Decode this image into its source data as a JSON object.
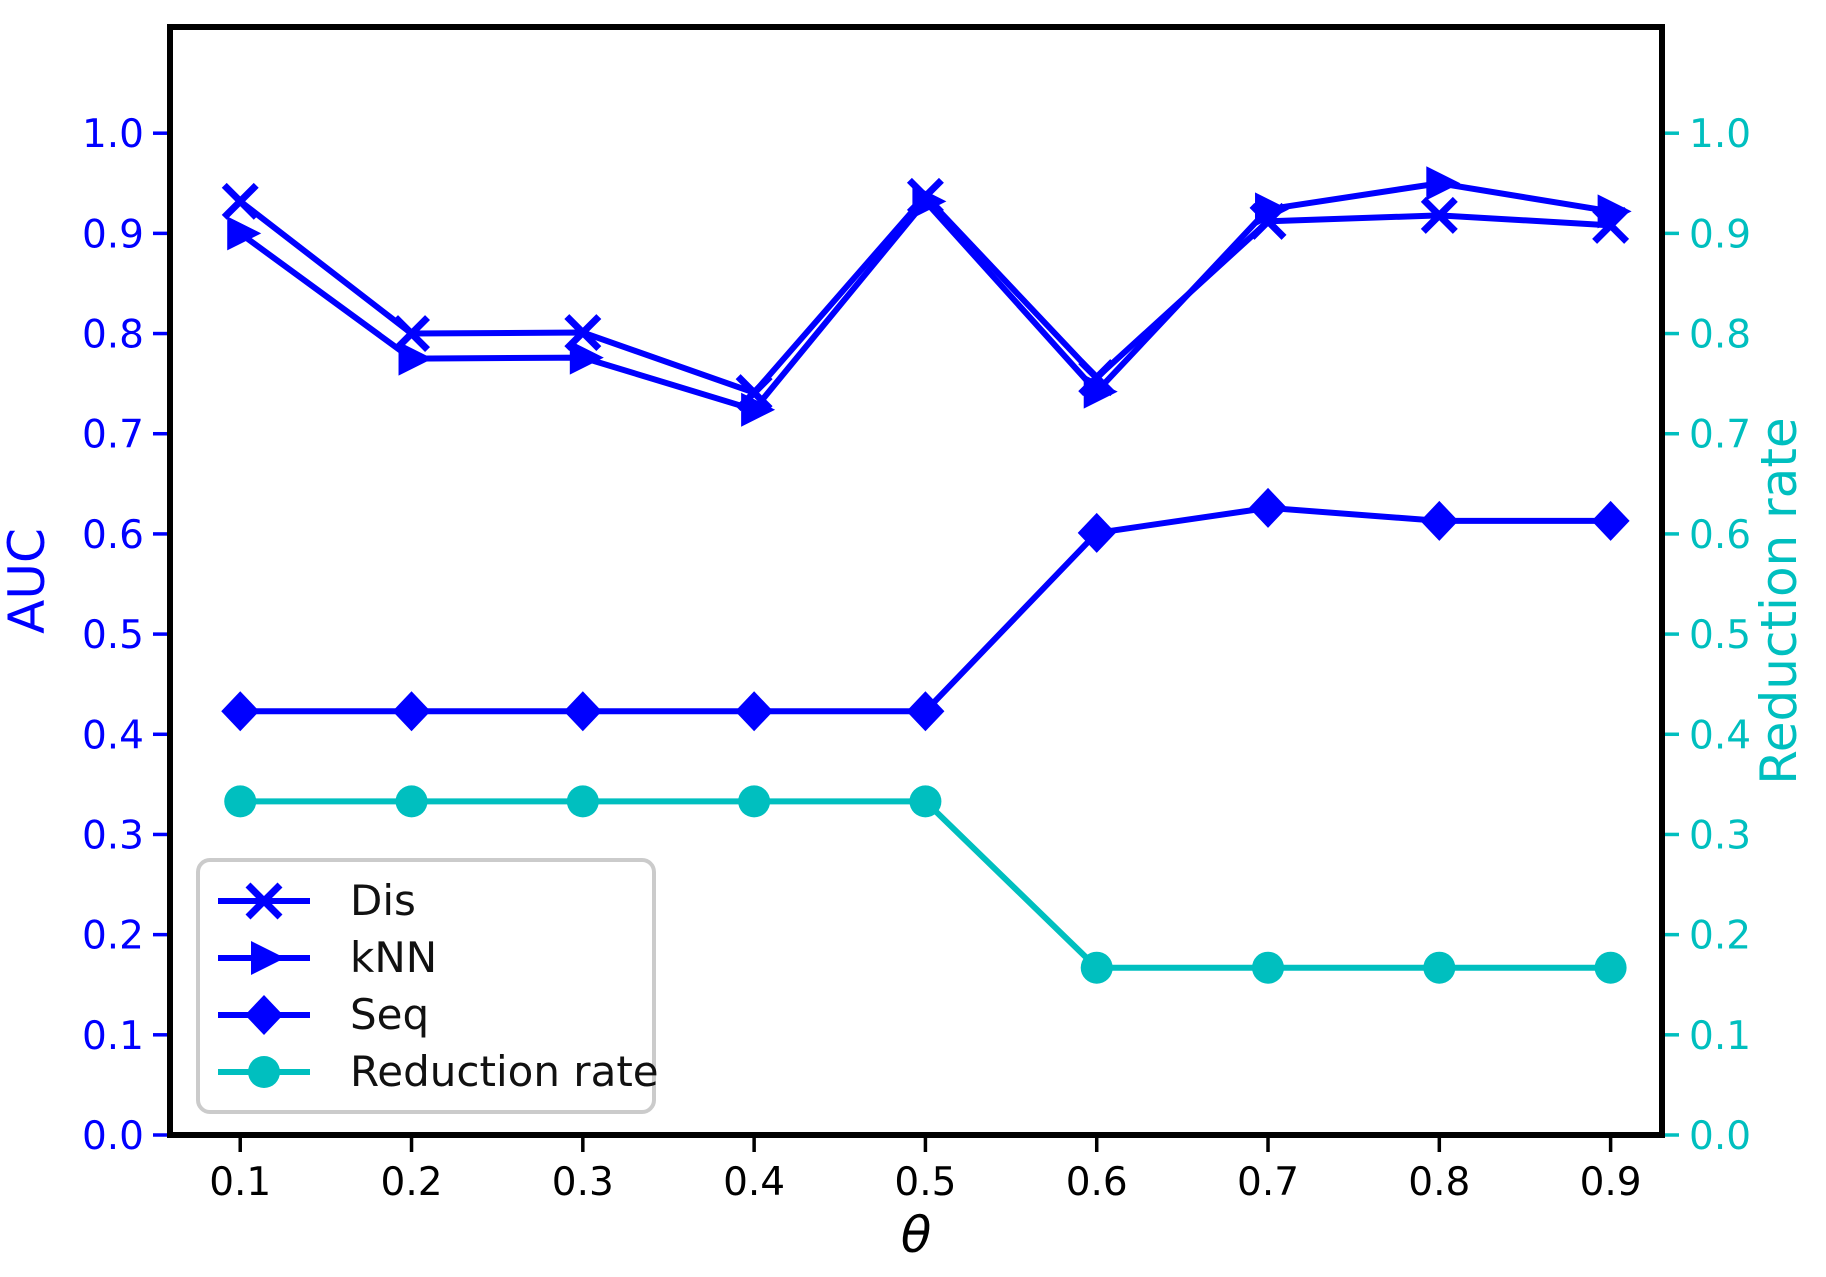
{
  "chart_data": {
    "type": "line",
    "title": "",
    "xlabel": "θ",
    "ylabel_left": "AUC",
    "ylabel_right": "Reduction rate",
    "axis_colors": {
      "left": "#0000ff",
      "right": "#00bfbf",
      "bottom": "#000000"
    },
    "xlim": [
      0.059,
      0.93
    ],
    "ylim": [
      0.0,
      1.106
    ],
    "grid": false,
    "x": [
      0.1,
      0.2,
      0.3,
      0.4,
      0.5,
      0.6,
      0.7,
      0.8,
      0.9
    ],
    "xticks": [
      {
        "v": 0.1,
        "label": "0.1"
      },
      {
        "v": 0.2,
        "label": "0.2"
      },
      {
        "v": 0.3,
        "label": "0.3"
      },
      {
        "v": 0.4,
        "label": "0.4"
      },
      {
        "v": 0.5,
        "label": "0.5"
      },
      {
        "v": 0.6,
        "label": "0.6"
      },
      {
        "v": 0.7,
        "label": "0.7"
      },
      {
        "v": 0.8,
        "label": "0.8"
      },
      {
        "v": 0.9,
        "label": "0.9"
      }
    ],
    "yticks": [
      {
        "v": 0.0,
        "label": "0.0"
      },
      {
        "v": 0.1,
        "label": "0.1"
      },
      {
        "v": 0.2,
        "label": "0.2"
      },
      {
        "v": 0.3,
        "label": "0.3"
      },
      {
        "v": 0.4,
        "label": "0.4"
      },
      {
        "v": 0.5,
        "label": "0.5"
      },
      {
        "v": 0.6,
        "label": "0.6"
      },
      {
        "v": 0.7,
        "label": "0.7"
      },
      {
        "v": 0.8,
        "label": "0.8"
      },
      {
        "v": 0.9,
        "label": "0.9"
      },
      {
        "v": 1.0,
        "label": "1.0"
      }
    ],
    "series": [
      {
        "name": "Dis",
        "axis": "left",
        "color": "#0000ff",
        "marker": "x",
        "values": [
          0.932,
          0.8,
          0.801,
          0.741,
          0.937,
          0.756,
          0.912,
          0.918,
          0.908
        ]
      },
      {
        "name": "kNN",
        "axis": "left",
        "color": "#0000ff",
        "marker": "triangle-right",
        "values": [
          0.9,
          0.775,
          0.776,
          0.724,
          0.932,
          0.742,
          0.924,
          0.95,
          0.922
        ]
      },
      {
        "name": "Seq",
        "axis": "left",
        "color": "#0000ff",
        "marker": "diamond",
        "values": [
          0.423,
          0.423,
          0.423,
          0.423,
          0.423,
          0.601,
          0.626,
          0.613,
          0.613
        ]
      },
      {
        "name": "Reduction rate",
        "axis": "right",
        "color": "#00bfbf",
        "marker": "circle",
        "values": [
          0.333,
          0.333,
          0.333,
          0.333,
          0.333,
          0.167,
          0.167,
          0.167,
          0.167
        ]
      }
    ],
    "legend": {
      "position": "lower left",
      "entries": [
        "Dis",
        "kNN",
        "Seq",
        "Reduction rate"
      ]
    }
  }
}
